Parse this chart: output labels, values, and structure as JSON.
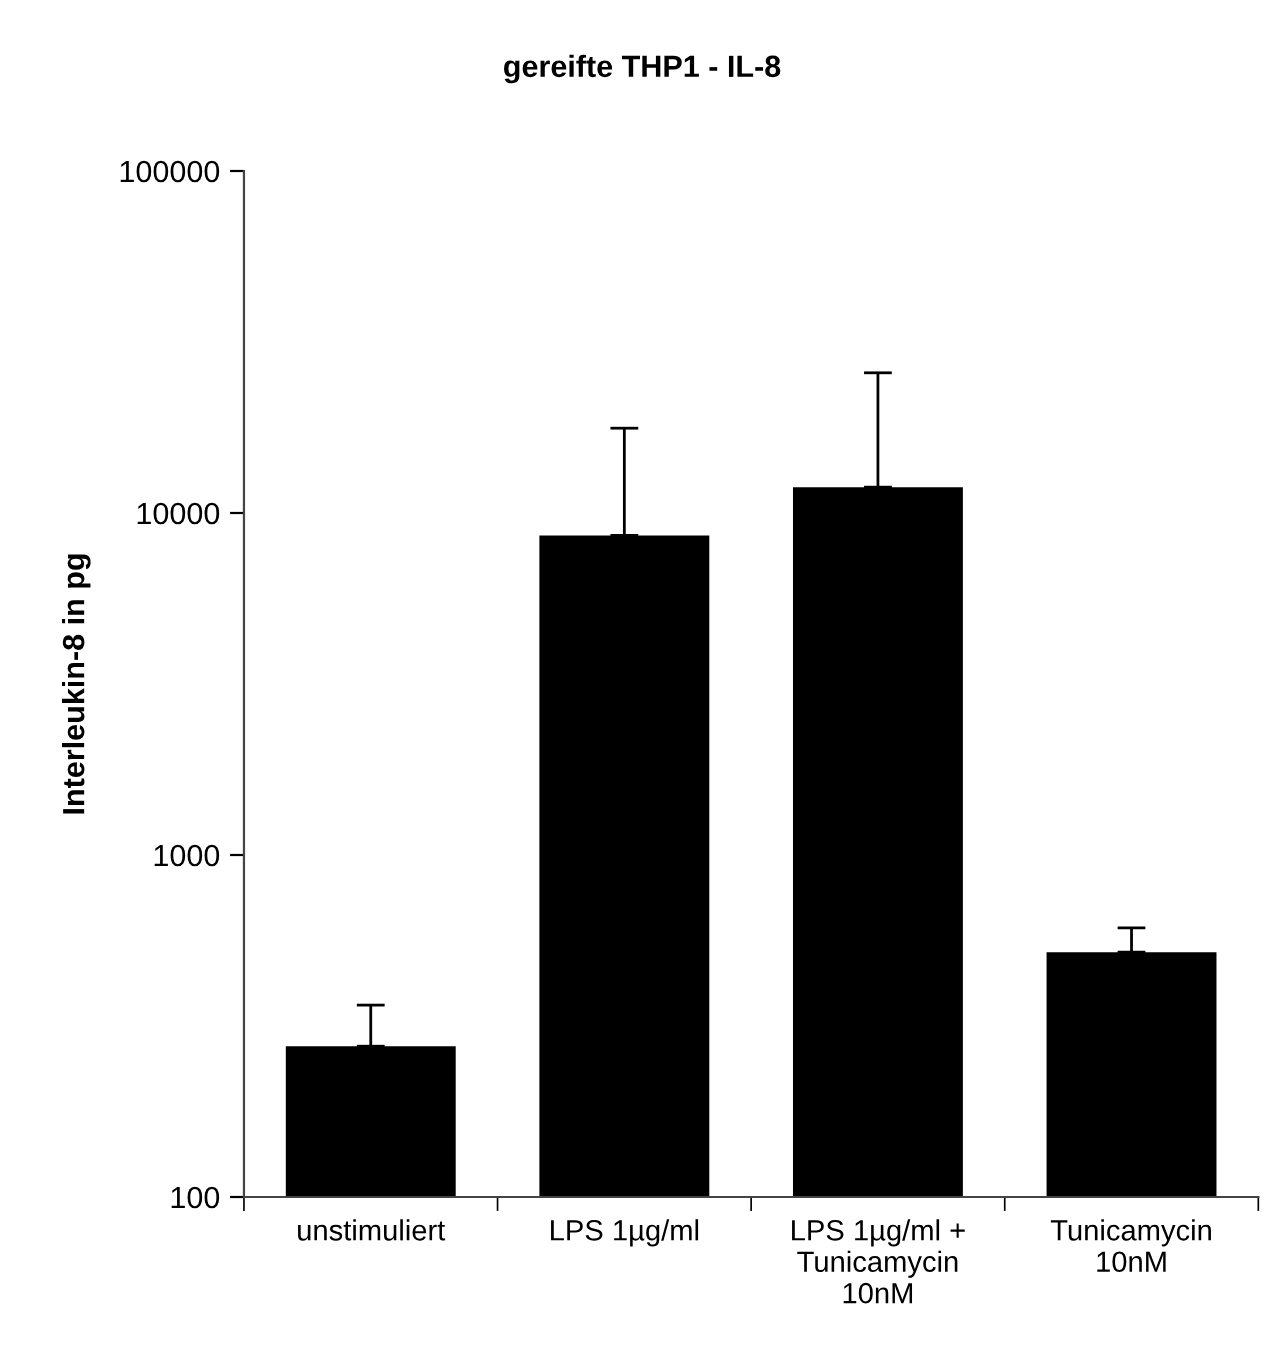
{
  "chart_data": {
    "type": "bar",
    "title": "gereifte THP1 - IL-8",
    "ylabel": "Interleukin-8 in pg",
    "categories": [
      "unstimuliert",
      "LPS 1µg/ml",
      "LPS 1µg/ml +\nTunicamycin\n10nM",
      "Tunicamycin\n10nM"
    ],
    "values": [
      276,
      8600,
      11900,
      520
    ],
    "errors": [
      [
        276,
        364
      ],
      [
        8600,
        17700
      ],
      [
        11900,
        25700
      ],
      [
        520,
        612
      ]
    ],
    "color": "#000000",
    "log": true,
    "ylim": [
      100,
      100000
    ],
    "yticks": [
      100,
      1000,
      10000,
      100000
    ],
    "grid": false,
    "legend": false
  }
}
